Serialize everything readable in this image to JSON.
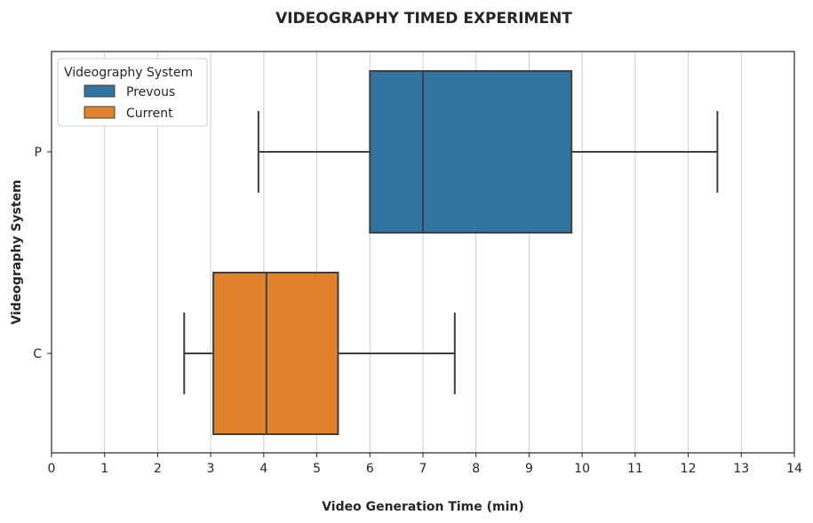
{
  "chart_data": {
    "type": "boxplot",
    "orientation": "horizontal",
    "title": "VIDEOGRAPHY TIMED EXPERIMENT",
    "xlabel": "Video Generation Time (min)",
    "ylabel": "Videography System",
    "xlim": [
      0,
      14
    ],
    "xticks": [
      0,
      1,
      2,
      3,
      4,
      5,
      6,
      7,
      8,
      9,
      10,
      11,
      12,
      13,
      14
    ],
    "grid": "vertical",
    "categories": [
      "P",
      "C"
    ],
    "series": [
      {
        "name": "Prevous",
        "category": "P",
        "color": "#3274a1",
        "whisker_low": 3.9,
        "q1": 6.0,
        "median": 7.0,
        "q3": 9.8,
        "whisker_high": 12.55
      },
      {
        "name": "Current",
        "category": "C",
        "color": "#e1812c",
        "whisker_low": 2.5,
        "q1": 3.05,
        "median": 4.05,
        "q3": 5.4,
        "whisker_high": 7.6
      }
    ],
    "legend": {
      "title": "Videography System",
      "position": "top-left"
    }
  }
}
